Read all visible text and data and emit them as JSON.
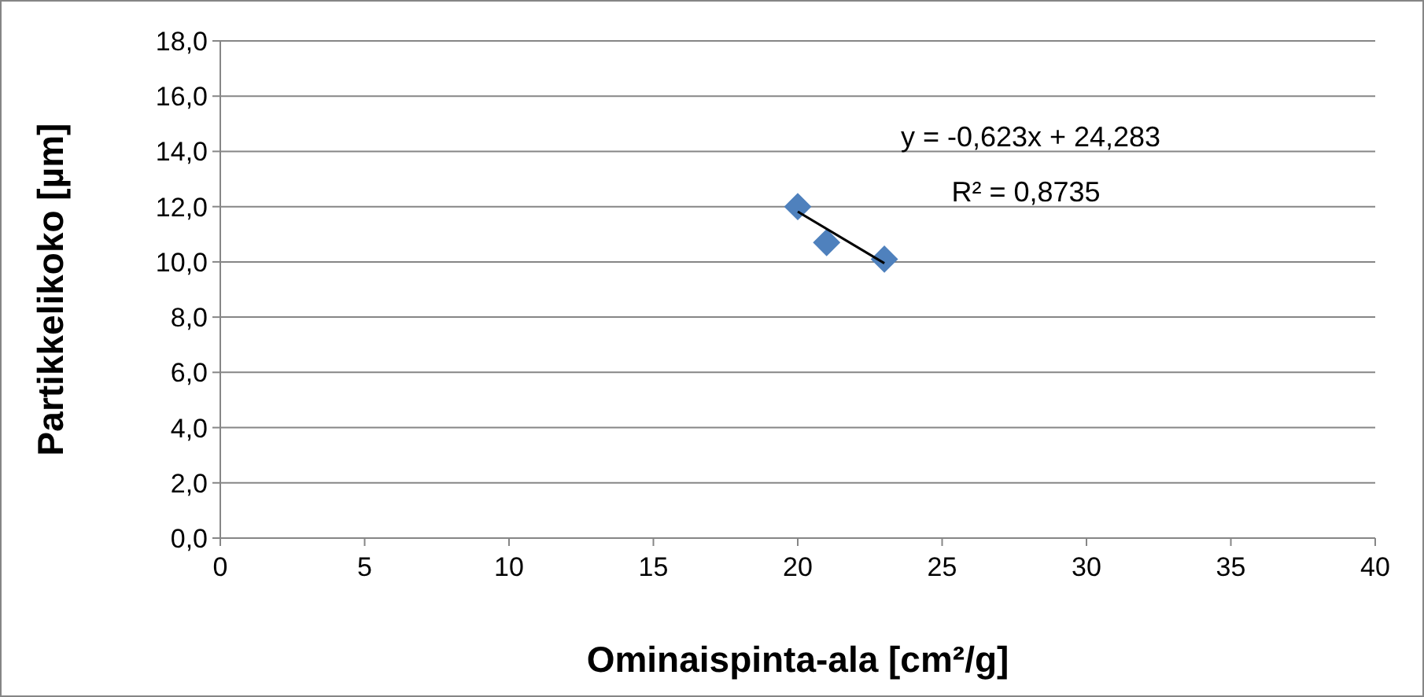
{
  "chart_data": {
    "type": "scatter",
    "xlabel": "Ominaispinta-ala [cm²/g]",
    "ylabel": "Partikkelikoko [µm]",
    "xlim": [
      0,
      40
    ],
    "xticks": [
      0,
      5,
      10,
      15,
      20,
      25,
      30,
      35,
      40
    ],
    "ylim": [
      0,
      18
    ],
    "yticks": [
      {
        "value": 0,
        "label": "0,0"
      },
      {
        "value": 2,
        "label": "2,0"
      },
      {
        "value": 4,
        "label": "4,0"
      },
      {
        "value": 6,
        "label": "6,0"
      },
      {
        "value": 8,
        "label": "8,0"
      },
      {
        "value": 10,
        "label": "10,0"
      },
      {
        "value": 12,
        "label": "12,0"
      },
      {
        "value": 14,
        "label": "14,0"
      },
      {
        "value": 16,
        "label": "16,0"
      },
      {
        "value": 18,
        "label": "18,0"
      }
    ],
    "grid": "y",
    "marker": "diamond",
    "series": [
      {
        "color": "#4f81bd",
        "x": [
          20,
          21,
          23
        ],
        "values": [
          12.0,
          10.7,
          10.1
        ]
      },
      {
        "type": "line",
        "color": "#000000",
        "x": [
          20,
          23
        ],
        "values": [
          11.82,
          9.95
        ],
        "marker": "none"
      }
    ],
    "annotations": [
      "y = -0,623x + 24,283",
      "R² = 0,8735"
    ]
  }
}
